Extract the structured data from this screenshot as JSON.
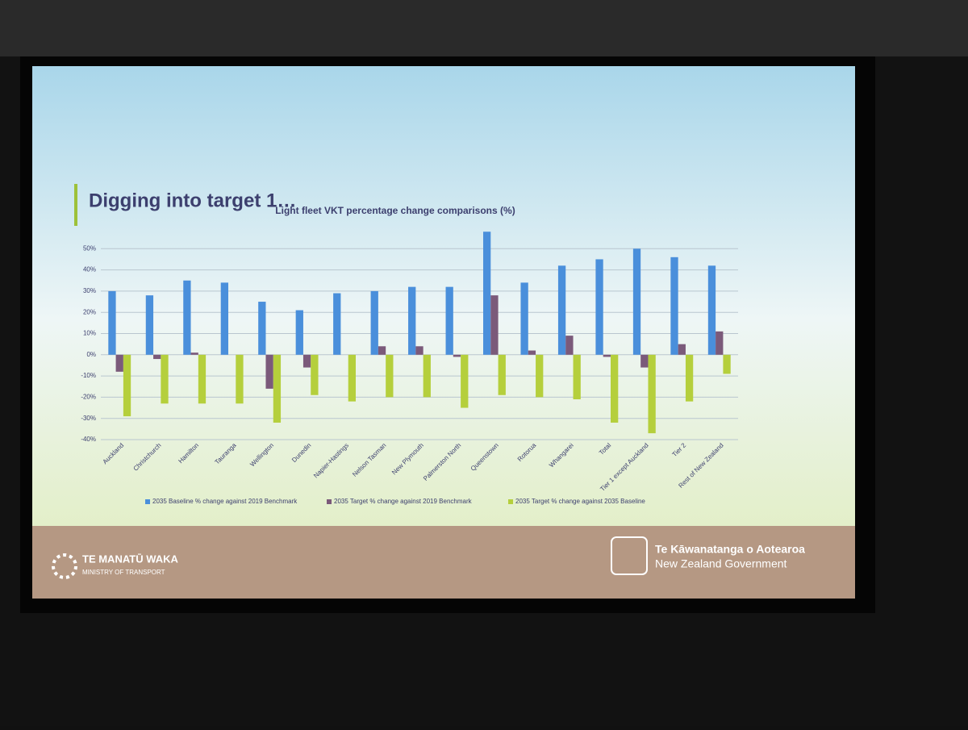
{
  "slide": {
    "heading": "Digging into target 1…",
    "footer_left_title": "TE MANATŪ WAKA",
    "footer_left_subtitle": "MINISTRY OF TRANSPORT",
    "footer_right_title": "Te Kāwanatanga o Aotearoa",
    "footer_right_subtitle": "New Zealand Government"
  },
  "chart_data": {
    "type": "bar",
    "title": "Light fleet VKT percentage change comparisons (%)",
    "categories": [
      "Auckland",
      "Christchurch",
      "Hamilton",
      "Tauranga",
      "Wellington",
      "Dunedin",
      "Napier-Hastings",
      "Nelson Tasman",
      "New Plymouth",
      "Palmerston North",
      "Queenstown",
      "Rotorua",
      "Whangarei",
      "Total",
      "Tier 1 except Auckland",
      "Tier 2",
      "Rest of New Zealand"
    ],
    "series": [
      {
        "name": "2035 Baseline % change against 2019 Benchmark",
        "color": "#4a8fdb",
        "values": [
          30,
          28,
          35,
          34,
          25,
          21,
          29,
          30,
          32,
          32,
          58,
          34,
          42,
          45,
          50,
          46,
          42
        ]
      },
      {
        "name": "2035 Target % change against 2019 Benchmark",
        "color": "#7b5a7a",
        "values": [
          -8,
          -2,
          1,
          0,
          -16,
          -6,
          0,
          4,
          4,
          -1,
          28,
          2,
          9,
          -1,
          -6,
          5,
          11
        ]
      },
      {
        "name": "2035 Target % change against 2035 Baseline",
        "color": "#b5cf3c",
        "values": [
          -29,
          -23,
          -23,
          -23,
          -32,
          -19,
          -22,
          -20,
          -20,
          -25,
          -19,
          -20,
          -21,
          -32,
          -37,
          -22,
          -9
        ]
      }
    ],
    "ylim": [
      -40,
      60
    ],
    "yticks": [
      {
        "value": -40,
        "label": "-40%"
      },
      {
        "value": -30,
        "label": "-30%"
      },
      {
        "value": -20,
        "label": "-20%"
      },
      {
        "value": -10,
        "label": "-10%"
      },
      {
        "value": 0,
        "label": "0%"
      },
      {
        "value": 10,
        "label": "10%"
      },
      {
        "value": 20,
        "label": "20%"
      },
      {
        "value": 30,
        "label": "30%"
      },
      {
        "value": 40,
        "label": "40%"
      },
      {
        "value": 50,
        "label": "50%"
      }
    ],
    "grid": true
  }
}
